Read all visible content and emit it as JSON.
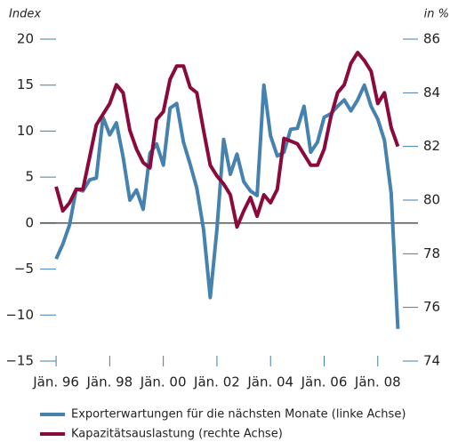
{
  "chart_data": {
    "type": "line",
    "y_axis_title": "Index",
    "y2_axis_title": "in %",
    "x": [
      1996,
      1996.25,
      1996.5,
      1996.75,
      1997,
      1997.25,
      1997.5,
      1997.75,
      1998,
      1998.25,
      1998.5,
      1998.75,
      1999,
      1999.25,
      1999.5,
      1999.75,
      2000,
      2000.25,
      2000.5,
      2000.75,
      2001,
      2001.25,
      2001.5,
      2001.75,
      2002,
      2002.25,
      2002.5,
      2002.75,
      2003,
      2003.25,
      2003.5,
      2003.75,
      2004,
      2004.25,
      2004.5,
      2004.75,
      2005,
      2005.25,
      2005.5,
      2005.75,
      2006,
      2006.25,
      2006.5,
      2006.75,
      2007,
      2007.25,
      2007.5,
      2007.75,
      2008,
      2008.25,
      2008.5,
      2008.75
    ],
    "series": [
      {
        "name": "Exporterwartungen für die nächsten Monate (linke Achse)",
        "color": "#4682b0",
        "values": [
          -3.9,
          -2.3,
          -0.2,
          3.7,
          3.5,
          4.7,
          4.9,
          11.5,
          9.6,
          10.9,
          7.2,
          2.5,
          3.6,
          1.5,
          7.6,
          8.6,
          6.3,
          12.5,
          13,
          8.8,
          6.4,
          3.8,
          -0.7,
          -8.1,
          -0.7,
          9.1,
          5.3,
          7.5,
          4.5,
          3.5,
          3,
          15,
          9.5,
          7.3,
          7.7,
          10.2,
          10.3,
          12.7,
          7.7,
          8.8,
          11.5,
          11.9,
          12.7,
          13.4,
          12.2,
          13.4,
          15,
          12.7,
          11.3,
          9,
          3.2,
          -11.5
        ]
      },
      {
        "name": "Kapazitätsauslastung (rechte Achse)",
        "color": "#8b0a3c",
        "axis": "y2",
        "values": [
          80.5,
          79.6,
          79.9,
          80.4,
          80.4,
          81.6,
          82.8,
          83.2,
          83.6,
          84.3,
          84.0,
          82.6,
          81.9,
          81.4,
          81.2,
          83.0,
          83.3,
          84.5,
          85.0,
          85.0,
          84.2,
          84.0,
          82.6,
          81.3,
          80.9,
          80.6,
          80.2,
          79.0,
          79.6,
          80.1,
          79.4,
          80.2,
          79.9,
          80.4,
          82.3,
          82.2,
          82.1,
          81.7,
          81.3,
          81.3,
          81.9,
          83.1,
          84.0,
          84.3,
          85.1,
          85.5,
          85.2,
          84.8,
          83.6,
          84.0,
          82.7,
          82.0
        ]
      }
    ],
    "xlim": [
      1995.4,
      2009.5
    ],
    "xticks": [
      {
        "value": 1996,
        "label": "Jän. 96"
      },
      {
        "value": 1998,
        "label": "Jän. 98"
      },
      {
        "value": 2000,
        "label": "Jän. 00"
      },
      {
        "value": 2002,
        "label": "Jän. 02"
      },
      {
        "value": 2004,
        "label": "Jän. 04"
      },
      {
        "value": 2006,
        "label": "Jän. 06"
      },
      {
        "value": 2008,
        "label": "Jän. 08"
      }
    ],
    "ylim": [
      -15,
      20
    ],
    "yticks": [
      20,
      15,
      10,
      5,
      0,
      {
        "value": -5,
        "label": "−5"
      },
      {
        "value": -10,
        "label": "−10"
      },
      {
        "value": -15,
        "label": "−15"
      }
    ],
    "y2lim": [
      74,
      86
    ],
    "y2ticks": [
      86,
      84,
      82,
      80,
      78,
      76,
      74
    ],
    "zero_line": true
  }
}
